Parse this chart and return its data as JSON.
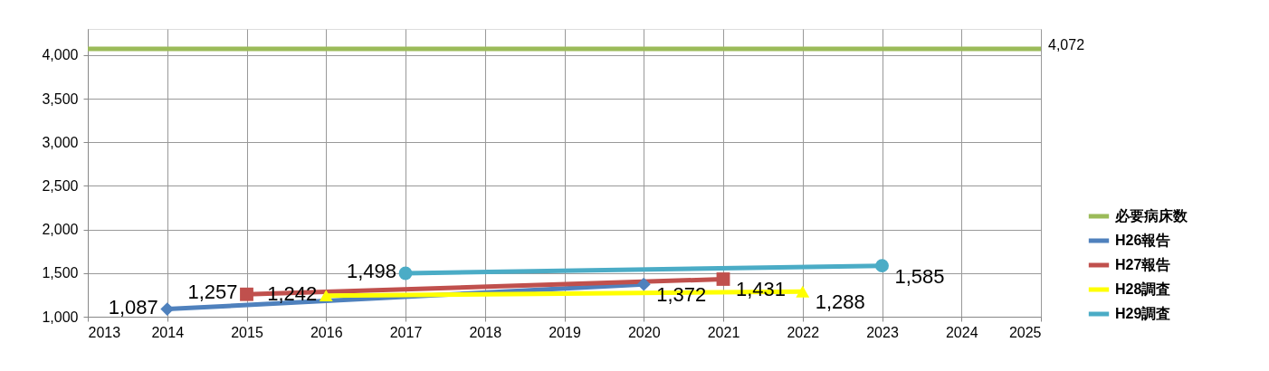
{
  "chart_data": {
    "type": "line",
    "xlim": [
      2013,
      2025
    ],
    "xticks": [
      2013,
      2014,
      2015,
      2016,
      2017,
      2018,
      2019,
      2020,
      2021,
      2022,
      2023,
      2024,
      2025
    ],
    "ylim": [
      1000,
      4300
    ],
    "yticks": [
      {
        "value": 1000,
        "label": "1,000"
      },
      {
        "value": 1500,
        "label": "1,500"
      },
      {
        "value": 2000,
        "label": "2,000"
      },
      {
        "value": 2500,
        "label": "2,500"
      },
      {
        "value": 3000,
        "label": "3,000"
      },
      {
        "value": 3500,
        "label": "3,500"
      },
      {
        "value": 4000,
        "label": "4,000"
      }
    ],
    "grid": true,
    "legend": "right",
    "series": [
      {
        "name": "必要病床数",
        "color": "#9bbb59",
        "x": [
          2013,
          2025
        ],
        "values": [
          4072,
          4072
        ],
        "marker": "none",
        "value_labels": [
          null,
          "4,072"
        ]
      },
      {
        "name": "H26報告",
        "color": "#4f81bd",
        "x": [
          2014,
          2020
        ],
        "values": [
          1087,
          1372
        ],
        "marker": "diamond",
        "value_labels": [
          "1,087",
          "1,372"
        ]
      },
      {
        "name": "H27報告",
        "color": "#c0504d",
        "x": [
          2015,
          2021
        ],
        "values": [
          1257,
          1431
        ],
        "marker": "square",
        "value_labels": [
          "1,257",
          "1,431"
        ]
      },
      {
        "name": "H28調査",
        "color": "#ffff00",
        "x": [
          2016,
          2022
        ],
        "values": [
          1242,
          1288
        ],
        "marker": "triangle",
        "value_labels": [
          "1,242",
          "1,288"
        ]
      },
      {
        "name": "H29調査",
        "color": "#4bacc6",
        "x": [
          2017,
          2023
        ],
        "values": [
          1498,
          1585
        ],
        "marker": "circle",
        "value_labels": [
          "1,498",
          "1,585"
        ]
      }
    ]
  }
}
